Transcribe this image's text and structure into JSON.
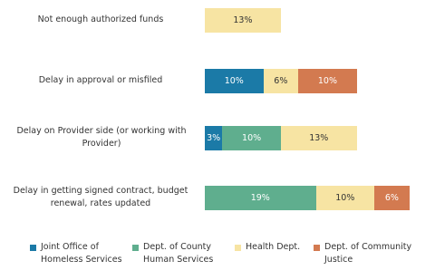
{
  "chart_data": {
    "type": "stacked-barh",
    "categories": [
      "Not enough authorized funds",
      "Delay in approval or misfiled",
      "Delay on Provider side (or working with Provider)",
      "Delay in getting signed contract, budget renewal, rates updated"
    ],
    "series": [
      {
        "name": "Joint Office of Homeless Services",
        "color": "#1b7aa7",
        "values": [
          null,
          10,
          3,
          null
        ],
        "value_labels": [
          null,
          "10%",
          "3%",
          null
        ]
      },
      {
        "name": "Dept. of County Human Services",
        "color": "#5fae8e",
        "values": [
          null,
          null,
          10,
          19
        ],
        "value_labels": [
          null,
          null,
          "10%",
          "19%"
        ]
      },
      {
        "name": "Health Dept.",
        "color": "#f7e4a3",
        "values": [
          13,
          6,
          13,
          10
        ],
        "value_labels": [
          "13%",
          "6%",
          "13%",
          "10%"
        ]
      },
      {
        "name": "Dept. of Community Justice",
        "color": "#d37a50",
        "values": [
          null,
          10,
          null,
          6
        ],
        "value_labels": [
          null,
          "10%",
          null,
          "6%"
        ]
      }
    ],
    "legend": "bottom"
  }
}
